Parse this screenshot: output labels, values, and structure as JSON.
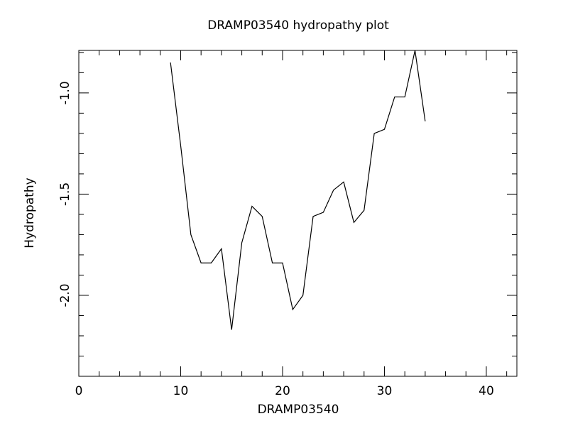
{
  "chart_data": {
    "type": "line",
    "title": "DRAMP03540 hydropathy plot",
    "x_label": "DRAMP03540",
    "y_label": "Hydropathy",
    "x": [
      9,
      10,
      11,
      12,
      13,
      14,
      15,
      16,
      17,
      18,
      19,
      20,
      21,
      22,
      23,
      24,
      25,
      26,
      27,
      28,
      29,
      30,
      31,
      32,
      33,
      34
    ],
    "series": [
      {
        "name": "Hydropathy",
        "color": "#000000",
        "values": [
          -0.85,
          -1.26,
          -1.7,
          -1.84,
          -1.84,
          -1.77,
          -2.17,
          -1.74,
          -1.56,
          -1.61,
          -1.84,
          -1.84,
          -2.07,
          -2.0,
          -1.61,
          -1.59,
          -1.48,
          -1.44,
          -1.64,
          -1.58,
          -1.2,
          -1.18,
          -1.02,
          -1.02,
          -0.79,
          -1.14
        ]
      }
    ],
    "xlim": [
      0,
      43
    ],
    "ylim": [
      -2.4,
      -0.79
    ],
    "xticks": [
      0,
      10,
      20,
      30,
      40
    ],
    "yticks": [
      {
        "value": -2,
        "label": "-2.0"
      },
      {
        "value": -1.5,
        "label": "-1.5"
      },
      {
        "value": -1,
        "label": "-1.0"
      }
    ],
    "xminor_ticks": [
      2,
      4,
      6,
      8,
      12,
      14,
      16,
      18,
      22,
      24,
      26,
      28,
      32,
      34,
      36,
      38,
      42
    ],
    "yminor_ticks": [
      -2.3,
      -2.2,
      -2.1,
      -1.9,
      -1.8,
      -1.7,
      -1.6,
      -1.4,
      -1.3,
      -1.2,
      -1.1,
      -0.9,
      -0.8
    ],
    "grid": false
  }
}
